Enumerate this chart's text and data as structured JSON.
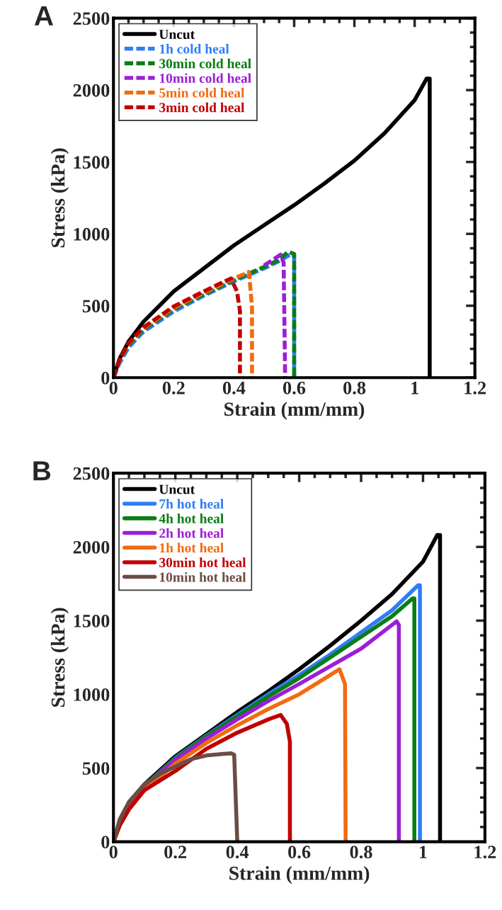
{
  "chart_data": [
    {
      "type": "line",
      "annotations": [
        "A"
      ],
      "xlabel": "Strain (mm/mm)",
      "ylabel": "Stress (kPa)",
      "xlim": [
        0,
        1.2
      ],
      "ylim": [
        0,
        2500
      ],
      "xticks": [
        0,
        0.2,
        0.4,
        0.6,
        0.8,
        1,
        1.2
      ],
      "yticks": [
        0,
        500,
        1000,
        1500,
        2000,
        2500
      ],
      "grid": false,
      "legend": "top left",
      "marker": "none",
      "series": [
        {
          "name": "Uncut",
          "color": "#000000",
          "line_style": "solid",
          "x": [
            0,
            0.02,
            0.05,
            0.1,
            0.2,
            0.3,
            0.4,
            0.5,
            0.6,
            0.7,
            0.8,
            0.9,
            1.0,
            1.04,
            1.05,
            1.05
          ],
          "values": [
            0,
            130,
            250,
            390,
            600,
            760,
            920,
            1060,
            1200,
            1350,
            1510,
            1700,
            1930,
            2080,
            2080,
            0
          ]
        },
        {
          "name": "1h cold heal",
          "color": "#2f7df6",
          "line_style": "dashed",
          "x": [
            0,
            0.02,
            0.05,
            0.1,
            0.2,
            0.3,
            0.4,
            0.5,
            0.55,
            0.59,
            0.6,
            0.6
          ],
          "values": [
            0,
            100,
            210,
            320,
            460,
            570,
            670,
            760,
            810,
            860,
            850,
            0
          ]
        },
        {
          "name": "30min cold heal",
          "color": "#0a7d14",
          "line_style": "dashed",
          "x": [
            0,
            0.02,
            0.05,
            0.1,
            0.2,
            0.3,
            0.4,
            0.5,
            0.55,
            0.58,
            0.6,
            0.6
          ],
          "values": [
            0,
            115,
            225,
            335,
            475,
            580,
            680,
            770,
            820,
            875,
            860,
            0
          ]
        },
        {
          "name": "10min cold heal",
          "color": "#9b1fd6",
          "line_style": "dashed",
          "x": [
            0.5,
            0.555,
            0.565,
            0.57
          ],
          "values": [
            780,
            855,
            800,
            0
          ]
        },
        {
          "name": "5min cold heal",
          "color": "#f26b10",
          "line_style": "dashed",
          "x": [
            0,
            0.02,
            0.05,
            0.1,
            0.2,
            0.3,
            0.4,
            0.45,
            0.46,
            0.46
          ],
          "values": [
            0,
            120,
            235,
            345,
            485,
            590,
            690,
            735,
            490,
            0
          ]
        },
        {
          "name": "3min cold heal",
          "color": "#c00000",
          "line_style": "dashed",
          "x": [
            0,
            0.02,
            0.05,
            0.1,
            0.2,
            0.3,
            0.39,
            0.41,
            0.42,
            0.42
          ],
          "values": [
            0,
            125,
            240,
            350,
            495,
            600,
            690,
            600,
            465,
            0
          ]
        }
      ]
    },
    {
      "type": "line",
      "annotations": [
        "B"
      ],
      "xlabel": "Strain (mm/mm)",
      "ylabel": "Stress (kPa)",
      "xlim": [
        0,
        1.2
      ],
      "ylim": [
        0,
        2500
      ],
      "xticks": [
        0,
        0.2,
        0.4,
        0.6,
        0.8,
        1,
        1.2
      ],
      "yticks": [
        0,
        500,
        1000,
        1500,
        2000,
        2500
      ],
      "grid": false,
      "legend": "top left",
      "marker": "none",
      "series": [
        {
          "name": "Uncut",
          "color": "#000000",
          "line_style": "solid",
          "x": [
            0,
            0.02,
            0.05,
            0.1,
            0.2,
            0.3,
            0.4,
            0.5,
            0.6,
            0.7,
            0.8,
            0.9,
            1.0,
            1.046,
            1.055,
            1.055
          ],
          "values": [
            0,
            130,
            250,
            390,
            580,
            730,
            880,
            1020,
            1170,
            1330,
            1500,
            1680,
            1900,
            2080,
            2080,
            0
          ]
        },
        {
          "name": "7h hot heal",
          "color": "#2f7df6",
          "line_style": "solid",
          "x": [
            0.1,
            0.2,
            0.3,
            0.4,
            0.5,
            0.6,
            0.7,
            0.8,
            0.9,
            0.984,
            0.99,
            0.99
          ],
          "values": [
            380,
            570,
            720,
            860,
            1000,
            1130,
            1270,
            1420,
            1570,
            1740,
            1740,
            0
          ]
        },
        {
          "name": "4h hot heal",
          "color": "#0a7d14",
          "line_style": "solid",
          "x": [
            0.05,
            0.1,
            0.2,
            0.3,
            0.4,
            0.5,
            0.6,
            0.7,
            0.8,
            0.9,
            0.966,
            0.972,
            0.972
          ],
          "values": [
            245,
            378,
            565,
            715,
            850,
            985,
            1110,
            1250,
            1390,
            1530,
            1650,
            1650,
            0
          ]
        },
        {
          "name": "2h hot heal",
          "color": "#9b1fd6",
          "line_style": "solid",
          "x": [
            0,
            0.02,
            0.05,
            0.1,
            0.2,
            0.3,
            0.4,
            0.5,
            0.6,
            0.7,
            0.8,
            0.915,
            0.922,
            0.922
          ],
          "values": [
            0,
            120,
            240,
            372,
            555,
            700,
            830,
            955,
            1070,
            1190,
            1310,
            1495,
            1470,
            0
          ]
        },
        {
          "name": "1h hot heal",
          "color": "#f26b10",
          "line_style": "solid",
          "x": [
            0,
            0.02,
            0.05,
            0.1,
            0.2,
            0.3,
            0.4,
            0.5,
            0.6,
            0.73,
            0.748,
            0.75
          ],
          "values": [
            0,
            110,
            220,
            350,
            530,
            670,
            790,
            900,
            1000,
            1170,
            1070,
            0
          ]
        },
        {
          "name": "30min hot heal",
          "color": "#c00000",
          "line_style": "solid",
          "x": [
            0,
            0.02,
            0.05,
            0.1,
            0.2,
            0.3,
            0.4,
            0.5,
            0.54,
            0.56,
            0.57,
            0.57
          ],
          "values": [
            0,
            110,
            220,
            350,
            480,
            630,
            740,
            830,
            860,
            800,
            680,
            0
          ]
        },
        {
          "name": "10min hot heal",
          "color": "#6b4d44",
          "line_style": "solid",
          "x": [
            0,
            0.02,
            0.05,
            0.1,
            0.15,
            0.2,
            0.25,
            0.3,
            0.35,
            0.38,
            0.39,
            0.4
          ],
          "values": [
            0,
            150,
            270,
            390,
            460,
            510,
            560,
            585,
            595,
            600,
            590,
            0
          ]
        }
      ]
    }
  ]
}
